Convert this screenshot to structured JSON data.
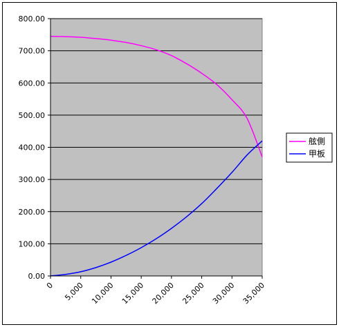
{
  "chart_data": {
    "type": "line",
    "title": "",
    "xlabel": "",
    "ylabel": "",
    "xlim": [
      0,
      35000
    ],
    "ylim": [
      0,
      800
    ],
    "x_tick_labels": [
      "0",
      "5,000",
      "10,000",
      "15,000",
      "20,000",
      "25,000",
      "30,000",
      "35,000"
    ],
    "x_tick_values": [
      0,
      5000,
      10000,
      15000,
      20000,
      25000,
      30000,
      35000
    ],
    "y_tick_labels": [
      "0.00",
      "100.00",
      "200.00",
      "300.00",
      "400.00",
      "500.00",
      "600.00",
      "700.00",
      "800.00"
    ],
    "y_tick_values": [
      0,
      100,
      200,
      300,
      400,
      500,
      600,
      700,
      800
    ],
    "grid": "horizontal",
    "plot_background": "#c0c0c0",
    "legend_position": "right",
    "x": [
      0,
      2500,
      5000,
      7500,
      10000,
      12500,
      15000,
      17500,
      20000,
      22500,
      25000,
      27500,
      30000,
      32500,
      35000
    ],
    "series": [
      {
        "name": "舷側",
        "color": "#ff00ff",
        "values": [
          745,
          744,
          742,
          738,
          733,
          726,
          716,
          703,
          685,
          660,
          630,
          595,
          548,
          490,
          370
        ]
      },
      {
        "name": "甲板",
        "color": "#0000ff",
        "values": [
          0,
          5,
          13,
          26,
          43,
          64,
          88,
          116,
          148,
          184,
          225,
          272,
          322,
          376,
          420
        ]
      }
    ]
  }
}
